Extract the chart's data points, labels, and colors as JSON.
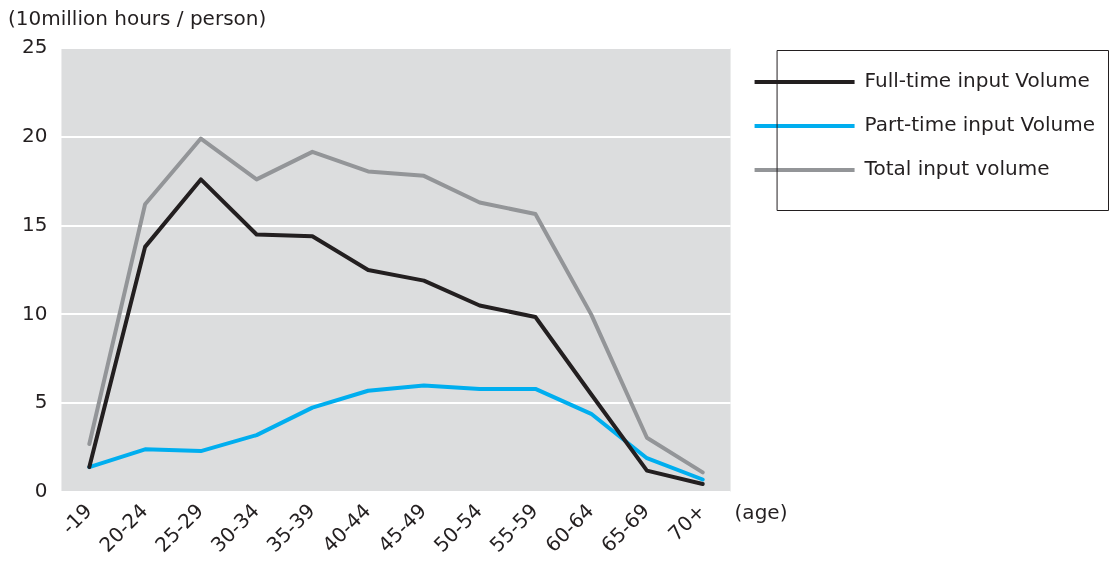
{
  "chart_data": {
    "type": "line",
    "xlabel": "(age)",
    "ylabel": "(10million hours / person)",
    "categories": [
      "-19",
      "20-24",
      "25-29",
      "30-34",
      "35-39",
      "40-44",
      "45-49",
      "50-54",
      "55-59",
      "60-64",
      "65-69",
      "70+"
    ],
    "series": [
      {
        "name": "Full-time input Volume",
        "color": "#231f20",
        "values": [
          1.4,
          13.8,
          17.6,
          14.5,
          14.4,
          12.5,
          11.9,
          10.5,
          9.85,
          5.5,
          1.2,
          0.45
        ]
      },
      {
        "name": "Part-time input Volume",
        "color": "#00aeef",
        "values": [
          1.4,
          2.4,
          2.3,
          3.2,
          4.75,
          5.7,
          6.0,
          5.8,
          5.8,
          4.4,
          1.9,
          0.7
        ]
      },
      {
        "name": "Total input volume",
        "color": "#939598",
        "values": [
          2.7,
          16.2,
          19.9,
          17.6,
          19.15,
          18.05,
          17.8,
          16.3,
          15.65,
          10.0,
          3.05,
          1.1
        ]
      }
    ],
    "ylim": [
      0,
      25
    ],
    "yticks": [
      0,
      5,
      10,
      15,
      20,
      25
    ],
    "grid": "y",
    "legend": "top right",
    "marker": "none",
    "line_style": "solid"
  }
}
